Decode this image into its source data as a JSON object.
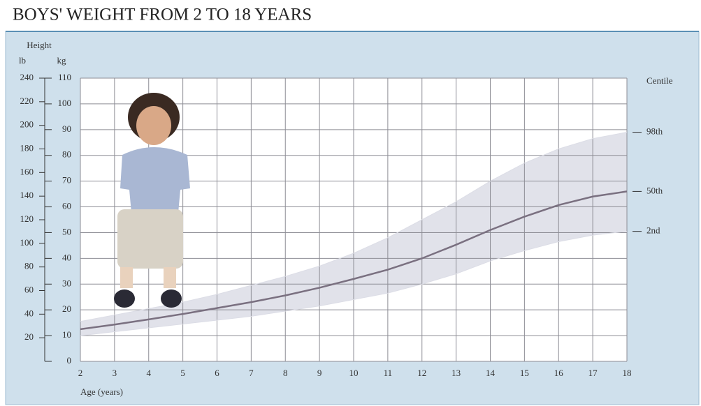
{
  "chart_data": {
    "type": "centile",
    "title": "BOYS' WEIGHT FROM 2 TO 18 YEARS",
    "y_label_top": "Height",
    "y2_unit": "lb",
    "y_unit": "kg",
    "x_label": "Age (years)",
    "legend_title": "Centile",
    "legend_position": "right",
    "x": [
      2,
      3,
      4,
      5,
      6,
      7,
      8,
      9,
      10,
      11,
      12,
      13,
      14,
      15,
      16,
      17,
      18
    ],
    "series": [
      {
        "name": "98th",
        "color": "#dcdde6",
        "values": [
          15.5,
          18,
          20.5,
          23,
          26,
          29.5,
          33,
          37,
          42,
          48,
          55,
          62,
          70,
          77,
          82.5,
          86.5,
          89
        ]
      },
      {
        "name": "50th",
        "color": "#7a7080",
        "values": [
          12.5,
          14.3,
          16.3,
          18.4,
          20.7,
          23,
          25.6,
          28.6,
          32,
          35.6,
          40,
          45.3,
          51,
          56.2,
          60.7,
          64,
          66
        ]
      },
      {
        "name": "2nd",
        "color": "#dcdde6",
        "values": [
          10,
          11.5,
          13,
          14.5,
          16,
          17.5,
          19.5,
          21.5,
          24,
          26.5,
          30,
          34,
          39,
          43,
          46.5,
          49,
          50.5
        ]
      }
    ],
    "xlim": [
      2,
      18
    ],
    "xticks": [
      2,
      3,
      4,
      5,
      6,
      7,
      8,
      9,
      10,
      11,
      12,
      13,
      14,
      15,
      16,
      17,
      18
    ],
    "ylim": [
      0,
      110
    ],
    "yticks": [
      0,
      10,
      20,
      30,
      40,
      50,
      60,
      70,
      80,
      90,
      100,
      110
    ],
    "y2lim": [
      0,
      240
    ],
    "y2ticks": [
      20,
      40,
      60,
      80,
      100,
      120,
      140,
      160,
      180,
      200,
      220,
      240
    ],
    "grid": true
  }
}
